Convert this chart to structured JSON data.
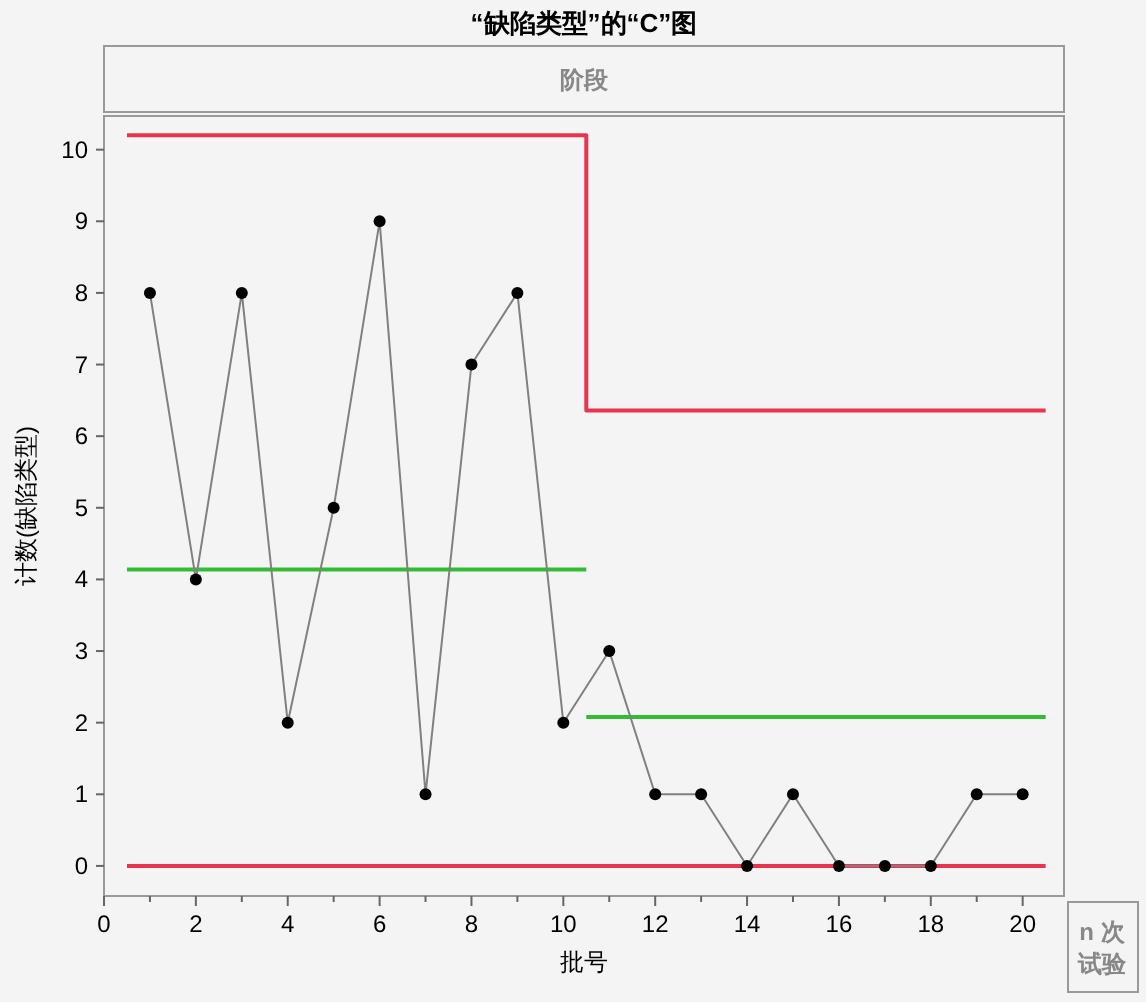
{
  "chart_data": {
    "type": "line",
    "title": "“缺陷类型”的“C”图",
    "subtitle": "阶段",
    "xlabel": "批号",
    "ylabel": "计数(缺陷类型)",
    "annotations": [
      "n 次试验"
    ],
    "xlim": [
      0,
      20.9
    ],
    "ylim": [
      -0.42,
      10.47
    ],
    "xticks": [
      0,
      {
        "value": 1,
        "label": null
      },
      2,
      {
        "value": 3,
        "label": null
      },
      4,
      {
        "value": 5,
        "label": null
      },
      6,
      {
        "value": 7,
        "label": null
      },
      8,
      {
        "value": 9,
        "label": null
      },
      10,
      {
        "value": 11,
        "label": null
      },
      12,
      {
        "value": 13,
        "label": null
      },
      14,
      {
        "value": 15,
        "label": null
      },
      16,
      {
        "value": 17,
        "label": null
      },
      18,
      {
        "value": 19,
        "label": null
      },
      20
    ],
    "yticks": [
      0,
      1,
      2,
      3,
      4,
      5,
      6,
      7,
      8,
      9,
      10
    ],
    "grid": false,
    "series": [
      {
        "color": "#808080",
        "marker": "circle",
        "x": [
          1,
          2,
          3,
          4,
          5,
          6,
          7,
          8,
          9,
          10,
          11,
          12,
          13,
          14,
          15,
          16,
          17,
          18,
          19,
          20
        ],
        "values": [
          8,
          4,
          8,
          2,
          5,
          9,
          1,
          7,
          8,
          2,
          3,
          1,
          1,
          0,
          1,
          0,
          0,
          0,
          1,
          1
        ]
      },
      {
        "color": "#e8344e",
        "marker": "none",
        "x": [
          0.5,
          10.5,
          10.5,
          20.5
        ],
        "values": [
          10.2,
          10.2,
          6.36,
          6.36
        ]
      },
      {
        "color": "#33bb33",
        "marker": "none",
        "x": [
          0.5,
          10.5
        ],
        "values": [
          4.14,
          4.14
        ]
      },
      {
        "color": "#33bb33",
        "marker": "none",
        "x": [
          10.5,
          20.5
        ],
        "values": [
          2.08,
          2.08
        ]
      },
      {
        "color": "#e8344e",
        "marker": "none",
        "x": [
          0.5,
          20.5
        ],
        "values": [
          0,
          0
        ]
      }
    ]
  }
}
